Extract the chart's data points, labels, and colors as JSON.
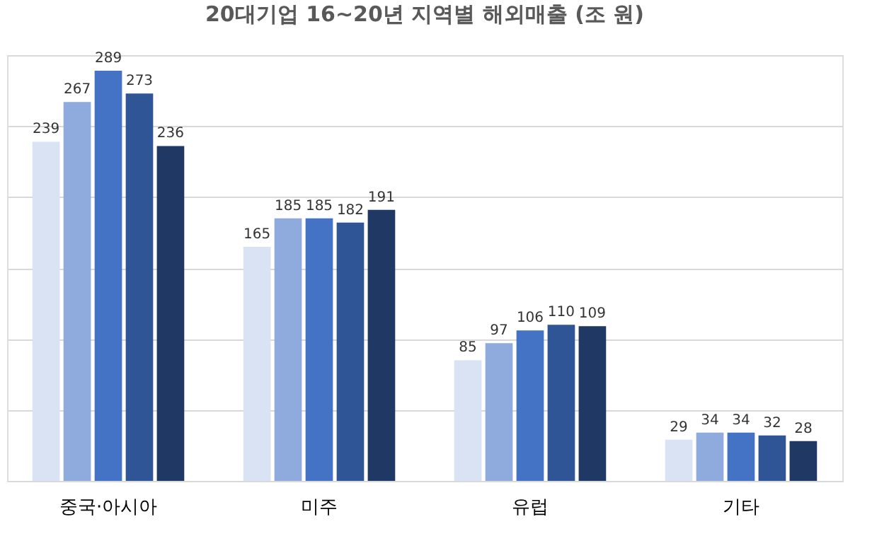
{
  "chart_data": {
    "type": "bar",
    "title": "20대기업 16~20년 지역별 해외매출 (조 원)",
    "categories": [
      "중국·아시아",
      "미주",
      "유럽",
      "기타"
    ],
    "series": [
      {
        "color": "#dae3f3",
        "values": [
          239,
          165,
          85,
          29
        ]
      },
      {
        "color": "#8faadc",
        "values": [
          267,
          185,
          97,
          34
        ]
      },
      {
        "color": "#4472c4",
        "values": [
          289,
          185,
          106,
          34
        ]
      },
      {
        "color": "#2f5597",
        "values": [
          273,
          182,
          110,
          32
        ]
      },
      {
        "color": "#1f3864",
        "values": [
          236,
          191,
          109,
          28
        ]
      }
    ],
    "ylim": [
      0,
      300
    ],
    "yticks": [
      0,
      50,
      100,
      150,
      200,
      250,
      300
    ],
    "grid": "y",
    "tick_labels": "x",
    "data_labels": true
  }
}
